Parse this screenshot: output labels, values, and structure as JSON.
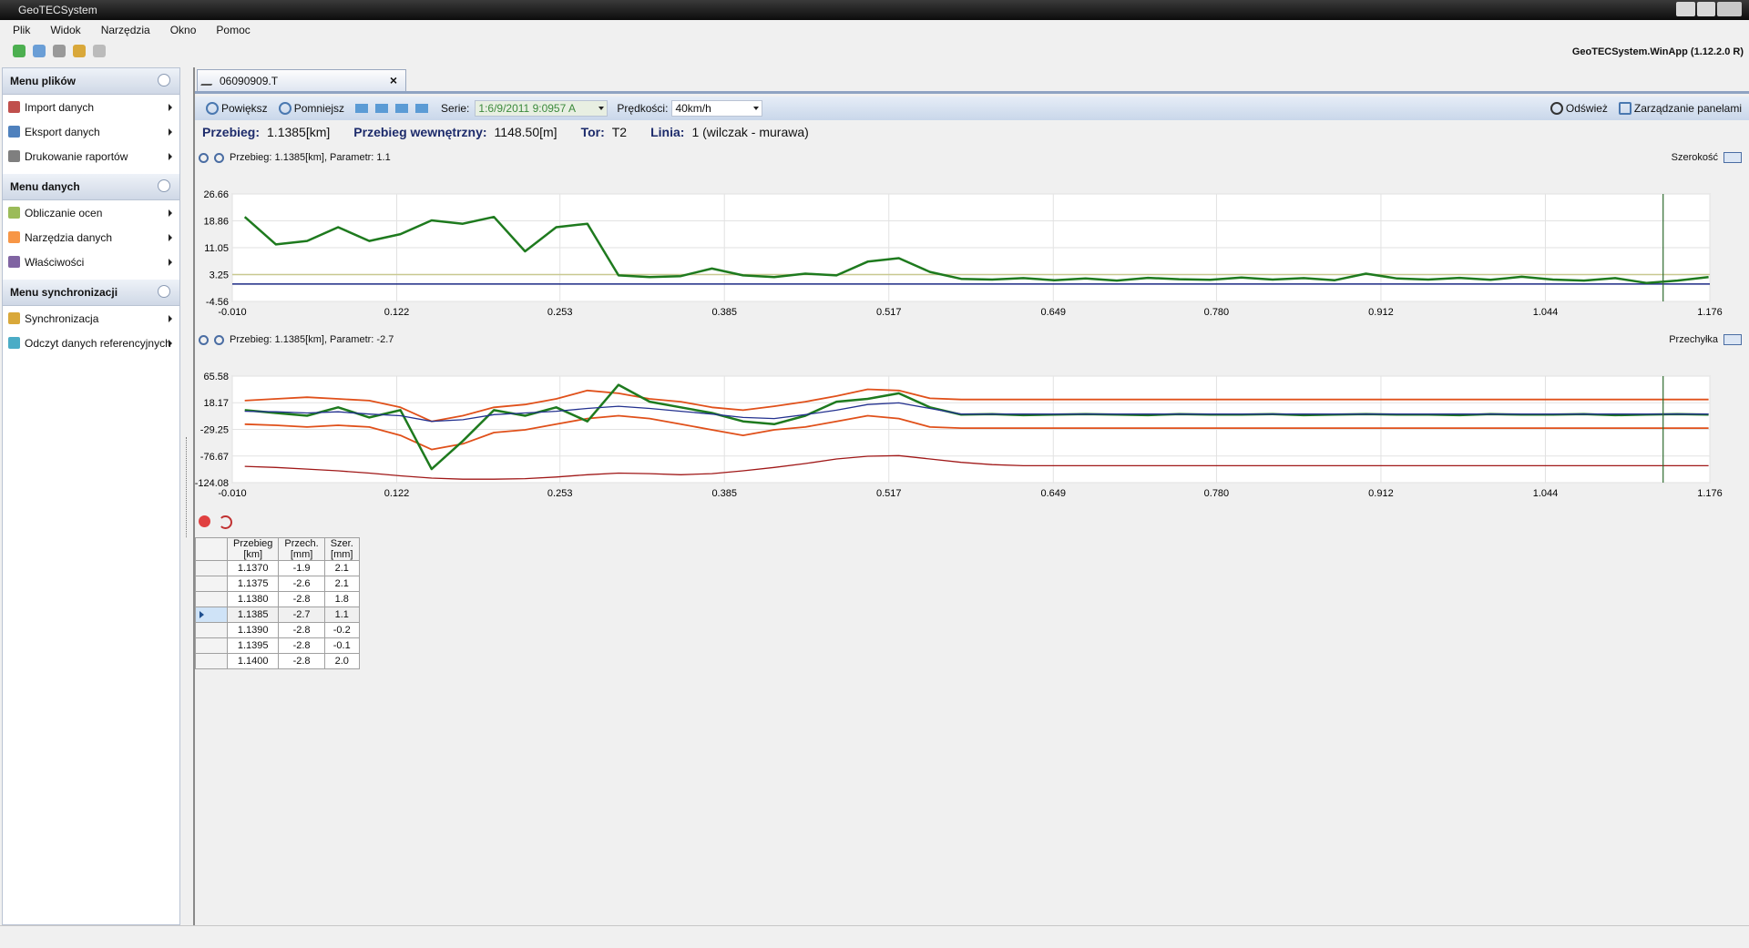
{
  "window": {
    "title": "GeoTECSystem",
    "version": "GeoTECSystem.WinApp (1.12.2.0 R)"
  },
  "menu": [
    "Plik",
    "Widok",
    "Narzędzia",
    "Okno",
    "Pomoc"
  ],
  "sidebar": [
    {
      "title": "Menu plików",
      "items": [
        "Import danych",
        "Eksport danych",
        "Drukowanie raportów"
      ]
    },
    {
      "title": "Menu danych",
      "items": [
        "Obliczanie ocen",
        "Narzędzia danych",
        "Właściwości"
      ]
    },
    {
      "title": "Menu synchronizacji",
      "items": [
        "Synchronizacja",
        "Odczyt danych referencyjnych"
      ]
    }
  ],
  "tab": "06090909.T",
  "toolbar": {
    "zoom_in": "Powiększ",
    "zoom_out": "Pomniejsz",
    "series_label": "Serie:",
    "series_value": "1:6/9/2011 9:0957 A",
    "speed_label": "Prędkości:",
    "speed_value": "40km/h",
    "refresh": "Odśwież",
    "panels": "Zarządzanie panelami"
  },
  "info": [
    {
      "label": "Przebieg:",
      "value": "1.1385[km]"
    },
    {
      "label": "Przebieg wewnętrzny:",
      "value": "1148.50[m]"
    },
    {
      "label": "Tor:",
      "value": "T2"
    },
    {
      "label": "Linia:",
      "value": "1 (wilczak - murawa)"
    }
  ],
  "chart_data": [
    {
      "type": "line",
      "header": "Przebieg: 1.1385[km],  Parametr: 1.1",
      "parameter": "Szerokość",
      "xlim": [
        -0.01,
        1.176
      ],
      "ylim": [
        -4.56,
        26.66
      ],
      "xticks": [
        {
          "value": -0.01,
          "label": "-0.010"
        },
        0.122,
        0.253,
        0.385,
        0.517,
        0.649,
        {
          "value": 0.78,
          "label": "0.780"
        },
        0.912,
        1.044,
        1.176
      ],
      "yticks": [
        26.66,
        18.86,
        11.05,
        3.25,
        -4.56
      ],
      "grid": true,
      "cursor_x": 1.1385,
      "hlines": [
        {
          "value": 3.25,
          "color": "#c8c890"
        },
        {
          "value": 0.5,
          "color": "#1c2a84"
        }
      ],
      "x": [
        0,
        0.025,
        0.05,
        0.075,
        0.1,
        0.125,
        0.15,
        0.175,
        0.2,
        0.225,
        0.25,
        0.275,
        0.3,
        0.325,
        0.35,
        0.375,
        0.4,
        0.425,
        0.45,
        0.475,
        0.5,
        0.525,
        0.55,
        0.575,
        0.6,
        0.625,
        0.65,
        0.675,
        0.7,
        0.725,
        0.75,
        0.775,
        0.8,
        0.825,
        0.85,
        0.875,
        0.9,
        0.925,
        0.95,
        0.975,
        1.0,
        1.025,
        1.05,
        1.075,
        1.1,
        1.125,
        1.15,
        1.175
      ],
      "series": [
        {
          "color": "#1e7a1e",
          "width": 2.5,
          "values": [
            20,
            12,
            13,
            17,
            13,
            15,
            19,
            18,
            20,
            10,
            17,
            18,
            3,
            2.5,
            2.8,
            5,
            3,
            2.5,
            3.5,
            3,
            7,
            8,
            4,
            2,
            1.8,
            2.2,
            1.6,
            2.1,
            1.5,
            2.3,
            1.9,
            1.7,
            2.4,
            1.8,
            2.2,
            1.6,
            3.5,
            2.1,
            1.8,
            2.3,
            1.7,
            2.6,
            1.8,
            1.5,
            2.2,
            0.8,
            1.5,
            2.5
          ]
        }
      ]
    },
    {
      "type": "line",
      "header": "Przebieg: 1.1385[km],  Parametr: -2.7",
      "parameter": "Przechyłka",
      "xlim": [
        -0.01,
        1.176
      ],
      "ylim": [
        -124.08,
        65.58
      ],
      "xticks": [
        {
          "value": -0.01,
          "label": "-0.010"
        },
        0.122,
        0.253,
        0.385,
        0.517,
        0.649,
        {
          "value": 0.78,
          "label": "0.780"
        },
        0.912,
        1.044,
        1.176
      ],
      "yticks": [
        65.58,
        18.17,
        -29.25,
        -76.67,
        -124.08
      ],
      "grid": true,
      "cursor_x": 1.1385,
      "hlines": [],
      "x": [
        0,
        0.025,
        0.05,
        0.075,
        0.1,
        0.125,
        0.15,
        0.175,
        0.2,
        0.225,
        0.25,
        0.275,
        0.3,
        0.325,
        0.35,
        0.375,
        0.4,
        0.425,
        0.45,
        0.475,
        0.5,
        0.525,
        0.55,
        0.575,
        0.6,
        0.625,
        0.65,
        0.675,
        0.7,
        0.725,
        0.75,
        0.775,
        0.8,
        0.825,
        0.85,
        0.875,
        0.9,
        0.925,
        0.95,
        0.975,
        1.0,
        1.025,
        1.05,
        1.075,
        1.1,
        1.125,
        1.15,
        1.175
      ],
      "series": [
        {
          "color": "#a01818",
          "width": 1.3,
          "values": [
            -95,
            -97,
            -100,
            -103,
            -107,
            -112,
            -116,
            -118,
            -118,
            -117,
            -114,
            -110,
            -107,
            -108,
            -110,
            -108,
            -103,
            -97,
            -90,
            -82,
            -77,
            -76,
            -82,
            -88,
            -92,
            -94,
            -94,
            -94,
            -94,
            -94,
            -94,
            -94,
            -94,
            -94,
            -94,
            -94,
            -94,
            -94,
            -94,
            -94,
            -94,
            -94,
            -94,
            -94,
            -94,
            -94,
            -94,
            -94
          ]
        },
        {
          "color": "#e0501a",
          "width": 1.8,
          "values": [
            22,
            25,
            28,
            25,
            22,
            10,
            -15,
            -5,
            10,
            15,
            25,
            40,
            35,
            25,
            20,
            10,
            5,
            12,
            20,
            30,
            42,
            40,
            26,
            24,
            24,
            24,
            24,
            24,
            24,
            24,
            24,
            24,
            24,
            24,
            24,
            24,
            24,
            24,
            24,
            24,
            24,
            24,
            24,
            24,
            24,
            24,
            24,
            24
          ]
        },
        {
          "color": "#e0501a",
          "width": 1.8,
          "values": [
            -20,
            -22,
            -25,
            -22,
            -25,
            -40,
            -65,
            -55,
            -35,
            -30,
            -20,
            -10,
            -5,
            -10,
            -20,
            -30,
            -40,
            -30,
            -25,
            -15,
            -5,
            -10,
            -25,
            -27,
            -27,
            -27,
            -27,
            -27,
            -27,
            -27,
            -27,
            -27,
            -27,
            -27,
            -27,
            -27,
            -27,
            -27,
            -27,
            -27,
            -27,
            -27,
            -27,
            -27,
            -27,
            -27,
            -27,
            -27
          ]
        },
        {
          "color": "#1e7a1e",
          "width": 2.5,
          "values": [
            5,
            0,
            -5,
            10,
            -8,
            5,
            -100,
            -50,
            5,
            -5,
            10,
            -15,
            50,
            20,
            10,
            0,
            -15,
            -20,
            -5,
            20,
            25,
            35,
            10,
            -3,
            -2,
            -4,
            -3,
            -2,
            -3,
            -4,
            -2,
            -3,
            -3,
            -2,
            -4,
            -3,
            -2,
            -3,
            -3,
            -4,
            -2,
            -3,
            -3,
            -2,
            -4,
            -3,
            -2,
            -3
          ]
        },
        {
          "color": "#23318f",
          "width": 1.3,
          "values": [
            3,
            2,
            0,
            2,
            -2,
            -5,
            -15,
            -12,
            -3,
            0,
            3,
            8,
            12,
            8,
            3,
            -2,
            -8,
            -10,
            -3,
            5,
            15,
            18,
            8,
            -2,
            -2,
            -2,
            -2,
            -2,
            -2,
            -2,
            -2,
            -2,
            -2,
            -2,
            -2,
            -2,
            -2,
            -2,
            -2,
            -2,
            -2,
            -2,
            -2,
            -2,
            -2,
            -2,
            -2,
            -2
          ]
        }
      ]
    }
  ],
  "table": {
    "columns": [
      "Przebieg\n[km]",
      "Przech.\n[mm]",
      "Szer.\n[mm]"
    ],
    "rows": [
      [
        "1.1370",
        "-1.9",
        "2.1"
      ],
      [
        "1.1375",
        "-2.6",
        "2.1"
      ],
      [
        "1.1380",
        "-2.8",
        "1.8"
      ],
      [
        "1.1385",
        "-2.7",
        "1.1"
      ],
      [
        "1.1390",
        "-2.8",
        "-0.2"
      ],
      [
        "1.1395",
        "-2.8",
        "-0.1"
      ],
      [
        "1.1400",
        "-2.8",
        "2.0"
      ]
    ],
    "selected_row": 3
  }
}
